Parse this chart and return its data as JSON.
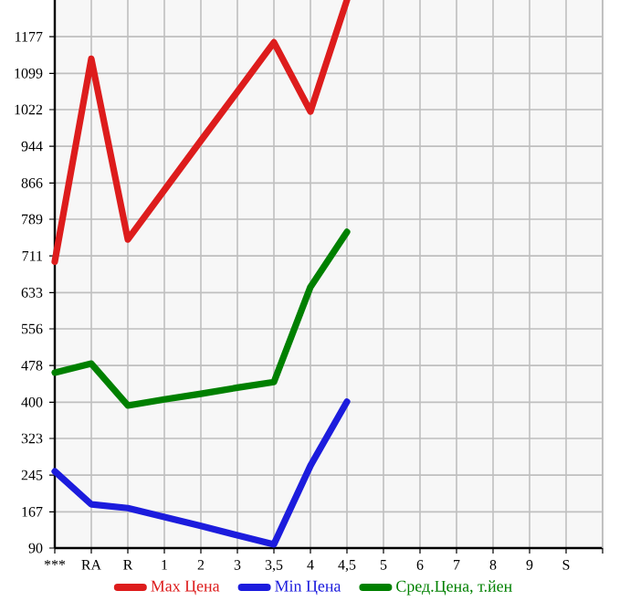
{
  "chart_data": {
    "type": "line",
    "categories": [
      "***",
      "RA",
      "R",
      "1",
      "2",
      "3",
      "3,5",
      "4",
      "4,5",
      "5",
      "6",
      "7",
      "8",
      "9",
      "S",
      null
    ],
    "series": [
      {
        "name": "Max Цена",
        "color": "#dd1c1c",
        "values": [
          699,
          1130,
          746,
          851,
          956,
          1060,
          1165,
          1018,
          1255,
          null,
          null,
          null,
          null,
          null,
          null,
          null
        ]
      },
      {
        "name": "Min Цена",
        "color": "#1c1cdd",
        "values": [
          253,
          183,
          175,
          156,
          137,
          117,
          98,
          265,
          401,
          null,
          null,
          null,
          null,
          null,
          null,
          null
        ]
      },
      {
        "name": "Сред.Цена, т.йен",
        "color": "#008000",
        "values": [
          463,
          482,
          393,
          406,
          418,
          431,
          443,
          645,
          762,
          null,
          null,
          null,
          null,
          null,
          null,
          null
        ]
      }
    ],
    "ylim": [
      90,
      1255
    ],
    "yticks": [
      90,
      167,
      245,
      323,
      400,
      478,
      556,
      633,
      711,
      789,
      866,
      944,
      1022,
      1099,
      1177
    ],
    "grid": true,
    "legend": "bottom",
    "marker": "none",
    "line_style": "solid"
  }
}
